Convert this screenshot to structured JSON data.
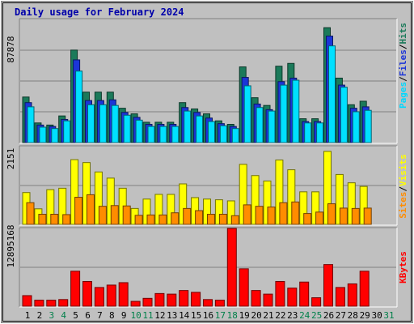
{
  "chart_data": [
    {
      "panel": "pages-files-hits",
      "type": "bar",
      "title": "Daily usage for February 2024",
      "ymax_label": "87878",
      "legend": [
        "Pages",
        "Files",
        "Hits"
      ],
      "legend_sep": "/",
      "days": [
        "1",
        "2",
        "3",
        "4",
        "5",
        "6",
        "7",
        "8",
        "9",
        "10",
        "11",
        "12",
        "13",
        "14",
        "15",
        "16",
        "17",
        "18",
        "19",
        "20",
        "21",
        "22",
        "23",
        "24",
        "25",
        "26",
        "27",
        "28",
        "29",
        "30",
        "31"
      ],
      "weekend_days": [
        "3",
        "4",
        "10",
        "11",
        "17",
        "18",
        "24",
        "25",
        "31"
      ],
      "series": [
        {
          "name": "Hits",
          "color": "#1b7a5a",
          "values": [
            32500,
            14000,
            12500,
            19000,
            66000,
            36000,
            36000,
            36000,
            24500,
            20500,
            14500,
            14500,
            14500,
            28500,
            24000,
            20500,
            15500,
            13000,
            54000,
            32000,
            26500,
            54500,
            56500,
            17000,
            17000,
            82000,
            46000,
            27000,
            29500
          ]
        },
        {
          "name": "Files",
          "color": "#1b35d8",
          "values": [
            28500,
            12500,
            11500,
            16500,
            59000,
            30000,
            30000,
            30500,
            21500,
            18000,
            13000,
            13000,
            13000,
            25000,
            21500,
            17500,
            13500,
            11500,
            46500,
            27500,
            23500,
            43500,
            46000,
            15000,
            15000,
            76000,
            41000,
            24500,
            25500
          ]
        },
        {
          "name": "Pages",
          "color": "#00e0ff",
          "values": [
            25500,
            11000,
            10000,
            15500,
            51000,
            27000,
            27000,
            26500,
            19500,
            16000,
            11500,
            11500,
            11500,
            22500,
            19000,
            15000,
            12000,
            10000,
            40500,
            25000,
            22500,
            41000,
            44500,
            14000,
            14000,
            69000,
            39500,
            22000,
            23000
          ]
        }
      ],
      "ylim": [
        0,
        87878
      ]
    },
    {
      "panel": "sites-visits",
      "type": "bar",
      "ymax_label": "2151",
      "legend": [
        "Sites",
        "Visits"
      ],
      "legend_sep": "/",
      "series": [
        {
          "name": "Visits",
          "color": "#ffff00",
          "values": [
            880,
            430,
            960,
            1000,
            1790,
            1710,
            1450,
            1280,
            1000,
            440,
            700,
            830,
            830,
            1120,
            740,
            700,
            680,
            650,
            1660,
            1350,
            1200,
            1780,
            1510,
            900,
            900,
            2020,
            1380,
            1150,
            1050
          ]
        },
        {
          "name": "Sites",
          "color": "#ff8c00",
          "values": [
            600,
            280,
            280,
            270,
            750,
            820,
            500,
            520,
            510,
            250,
            260,
            260,
            320,
            440,
            380,
            280,
            280,
            240,
            540,
            500,
            480,
            600,
            620,
            300,
            340,
            570,
            450,
            440,
            450
          ]
        }
      ],
      "ylim": [
        0,
        2151
      ]
    },
    {
      "panel": "kbytes",
      "type": "bar",
      "ymax_label": "12895168",
      "legend": [
        "KBytes"
      ],
      "series": [
        {
          "name": "KBytes",
          "color": "#ff0000",
          "values": [
            1750000,
            1000000,
            1000000,
            1100000,
            5800000,
            4100000,
            3100000,
            3500000,
            3900000,
            800000,
            1300000,
            2100000,
            2000000,
            2600000,
            2300000,
            1100000,
            1000000,
            12895168,
            6200000,
            2600000,
            2000000,
            4100000,
            3000000,
            4000000,
            1400000,
            6900000,
            3100000,
            3700000,
            5800000
          ]
        }
      ],
      "ylim": [
        0,
        12895168
      ]
    }
  ]
}
